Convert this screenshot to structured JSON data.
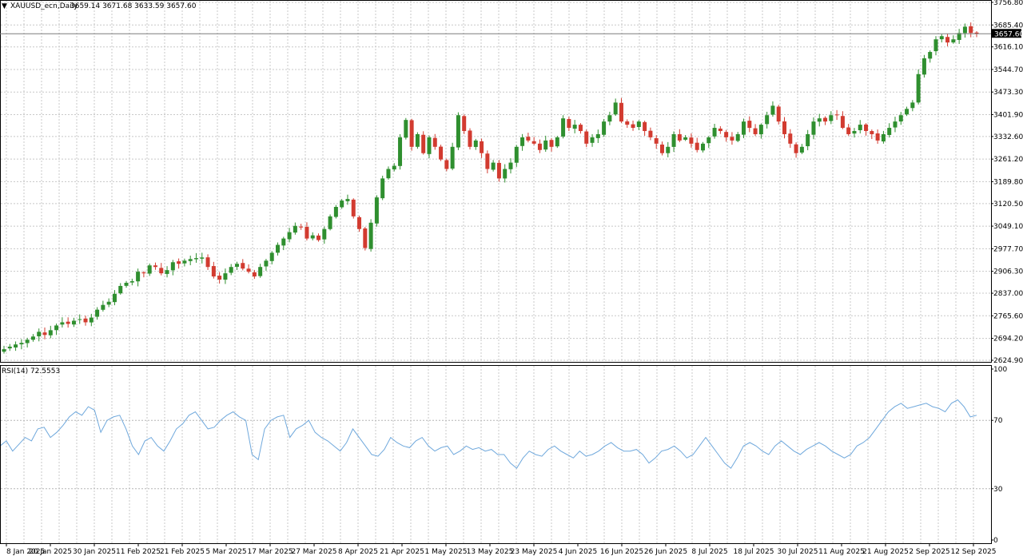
{
  "window": {
    "title": "XAUUSD_ecn,Daily",
    "ohlc": "3659.14 3671.68 3633.59 3657.60",
    "current_price": "3657.60"
  },
  "colors": {
    "up": "#2f8f2f",
    "down": "#d23b30",
    "rsi_line": "#6fa8dc",
    "grid": "#c8c8c8",
    "axis": "#000000"
  },
  "chart_data": [
    {
      "type": "candlestick",
      "title": "XAUUSD_ecn,Daily",
      "ylim": [
        2624.9,
        3756.8
      ],
      "yticks": [
        "3756.80",
        "3685.40",
        "3616.10",
        "3544.70",
        "3473.30",
        "3401.90",
        "3332.60",
        "3261.20",
        "3189.80",
        "3120.50",
        "3049.10",
        "2977.70",
        "2906.30",
        "2837.00",
        "2765.60",
        "2694.20",
        "2624.90"
      ],
      "xticks": [
        "8 Jan 2025",
        "20 Jan 2025",
        "30 Jan 2025",
        "11 Feb 2025",
        "21 Feb 2025",
        "5 Mar 2025",
        "17 Mar 2025",
        "27 Mar 2025",
        "8 Apr 2025",
        "21 Apr 2025",
        "1 May 2025",
        "13 May 2025",
        "23 May 2025",
        "4 Jun 2025",
        "16 Jun 2025",
        "26 Jun 2025",
        "8 Jul 2025",
        "18 Jul 2025",
        "30 Jul 2025",
        "11 Aug 2025",
        "21 Aug 2025",
        "2 Sep 2025",
        "12 Sep 2025"
      ],
      "close": [
        2660,
        2668,
        2675,
        2680,
        2690,
        2700,
        2715,
        2705,
        2720,
        2735,
        2745,
        2740,
        2750,
        2755,
        2745,
        2760,
        2785,
        2800,
        2810,
        2835,
        2860,
        2870,
        2875,
        2905,
        2900,
        2925,
        2920,
        2900,
        2910,
        2935,
        2930,
        2940,
        2945,
        2948,
        2950,
        2920,
        2890,
        2880,
        2900,
        2920,
        2930,
        2915,
        2905,
        2890,
        2920,
        2940,
        2965,
        2990,
        3010,
        3030,
        3050,
        3045,
        3010,
        3020,
        3005,
        3040,
        3080,
        3110,
        3130,
        3135,
        3080,
        3040,
        2980,
        3060,
        3140,
        3200,
        3230,
        3240,
        3330,
        3385,
        3300,
        3340,
        3280,
        3330,
        3300,
        3260,
        3230,
        3300,
        3400,
        3350,
        3300,
        3320,
        3280,
        3230,
        3250,
        3200,
        3230,
        3250,
        3300,
        3330,
        3320,
        3310,
        3290,
        3320,
        3300,
        3330,
        3390,
        3360,
        3370,
        3350,
        3310,
        3330,
        3340,
        3380,
        3400,
        3440,
        3380,
        3370,
        3360,
        3380,
        3350,
        3330,
        3310,
        3280,
        3300,
        3340,
        3320,
        3330,
        3310,
        3290,
        3310,
        3330,
        3360,
        3350,
        3330,
        3320,
        3340,
        3380,
        3360,
        3340,
        3370,
        3400,
        3430,
        3380,
        3340,
        3310,
        3280,
        3300,
        3340,
        3380,
        3390,
        3380,
        3400,
        3400,
        3360,
        3340,
        3350,
        3370,
        3350,
        3340,
        3320,
        3340,
        3360,
        3380,
        3400,
        3420,
        3440,
        3530,
        3580,
        3600,
        3640,
        3650,
        3630,
        3640,
        3660,
        3680,
        3660,
        3657
      ]
    },
    {
      "type": "line",
      "title": "RSI(14) 72.5553",
      "ylim": [
        0,
        100
      ],
      "yticks": [
        "100",
        "70",
        "30",
        "0"
      ],
      "values": [
        55,
        58,
        52,
        56,
        60,
        58,
        65,
        66,
        60,
        63,
        67,
        72,
        75,
        73,
        78,
        76,
        63,
        70,
        72,
        73,
        65,
        55,
        50,
        58,
        60,
        55,
        52,
        58,
        65,
        68,
        73,
        75,
        70,
        65,
        66,
        70,
        73,
        75,
        72,
        70,
        50,
        47,
        65,
        70,
        72,
        73,
        60,
        65,
        67,
        70,
        63,
        60,
        58,
        55,
        52,
        57,
        65,
        60,
        55,
        50,
        49,
        53,
        60,
        57,
        55,
        54,
        58,
        60,
        55,
        52,
        54,
        55,
        50,
        52,
        55,
        53,
        54,
        52,
        53,
        50,
        50,
        45,
        42,
        48,
        52,
        50,
        49,
        53,
        55,
        52,
        50,
        48,
        52,
        49,
        50,
        52,
        55,
        57,
        54,
        52,
        52,
        53,
        50,
        45,
        48,
        52,
        53,
        55,
        52,
        48,
        50,
        55,
        60,
        55,
        50,
        45,
        42,
        48,
        55,
        57,
        55,
        52,
        50,
        55,
        58,
        55,
        52,
        50,
        53,
        55,
        57,
        55,
        52,
        50,
        48,
        50,
        55,
        57,
        60,
        65,
        70,
        75,
        78,
        80,
        77,
        78,
        79,
        80,
        78,
        77,
        75,
        80,
        82,
        78,
        72,
        73
      ]
    }
  ]
}
